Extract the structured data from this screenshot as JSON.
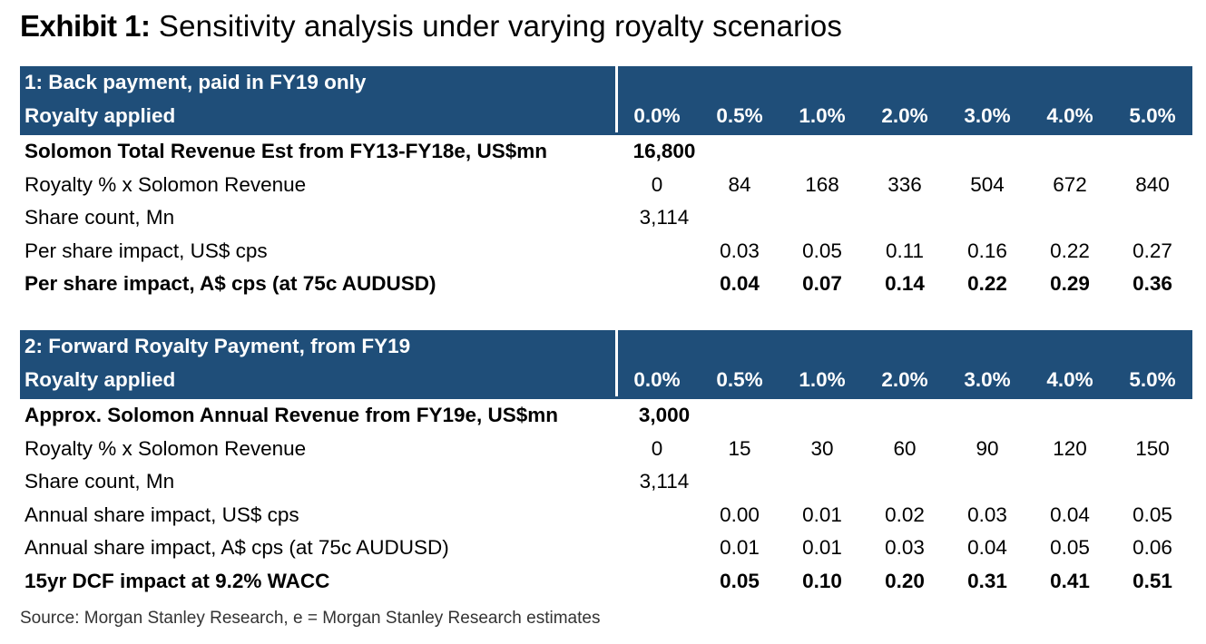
{
  "title": {
    "label": "Exhibit 1:",
    "text": "Sensitivity analysis under varying royalty scenarios"
  },
  "section1": {
    "header": "1: Back payment, paid in FY19 only",
    "subheader": "Royalty applied",
    "rates": [
      "0.0%",
      "0.5%",
      "1.0%",
      "2.0%",
      "3.0%",
      "4.0%",
      "5.0%"
    ],
    "revenue": {
      "label": "Solomon Total Revenue Est from FY13-FY18e, US$mn",
      "value": "16,800"
    },
    "royalty": {
      "label": "Royalty % x Solomon Revenue",
      "values": [
        "0",
        "84",
        "168",
        "336",
        "504",
        "672",
        "840"
      ]
    },
    "shares": {
      "label": "Share count, Mn",
      "value": "3,114"
    },
    "usd": {
      "label": "Per share impact, US$ cps",
      "values": [
        "0.03",
        "0.05",
        "0.11",
        "0.16",
        "0.22",
        "0.27"
      ]
    },
    "aud": {
      "label": "Per share impact, A$ cps (at 75c AUDUSD)",
      "values": [
        "0.04",
        "0.07",
        "0.14",
        "0.22",
        "0.29",
        "0.36"
      ]
    }
  },
  "section2": {
    "header": "2: Forward Royalty Payment, from FY19",
    "subheader": "Royalty applied",
    "rates": [
      "0.0%",
      "0.5%",
      "1.0%",
      "2.0%",
      "3.0%",
      "4.0%",
      "5.0%"
    ],
    "revenue": {
      "label": "Approx. Solomon Annual Revenue from FY19e, US$mn",
      "value": "3,000"
    },
    "royalty": {
      "label": "Royalty % x Solomon Revenue",
      "values": [
        "0",
        "15",
        "30",
        "60",
        "90",
        "120",
        "150"
      ]
    },
    "shares": {
      "label": "Share count, Mn",
      "value": "3,114"
    },
    "usd": {
      "label": "Annual share impact, US$ cps",
      "values": [
        "0.00",
        "0.01",
        "0.02",
        "0.03",
        "0.04",
        "0.05"
      ]
    },
    "aud": {
      "label": "Annual share impact, A$ cps (at 75c AUDUSD)",
      "values": [
        "0.01",
        "0.01",
        "0.03",
        "0.04",
        "0.05",
        "0.06"
      ]
    },
    "dcf": {
      "label": "15yr DCF impact at 9.2% WACC",
      "values": [
        "0.05",
        "0.10",
        "0.20",
        "0.31",
        "0.41",
        "0.51"
      ]
    }
  },
  "source": "Source: Morgan Stanley Research, e = Morgan Stanley Research estimates",
  "colors": {
    "header_bg": "#1f4e79",
    "header_text": "#ffffff"
  }
}
